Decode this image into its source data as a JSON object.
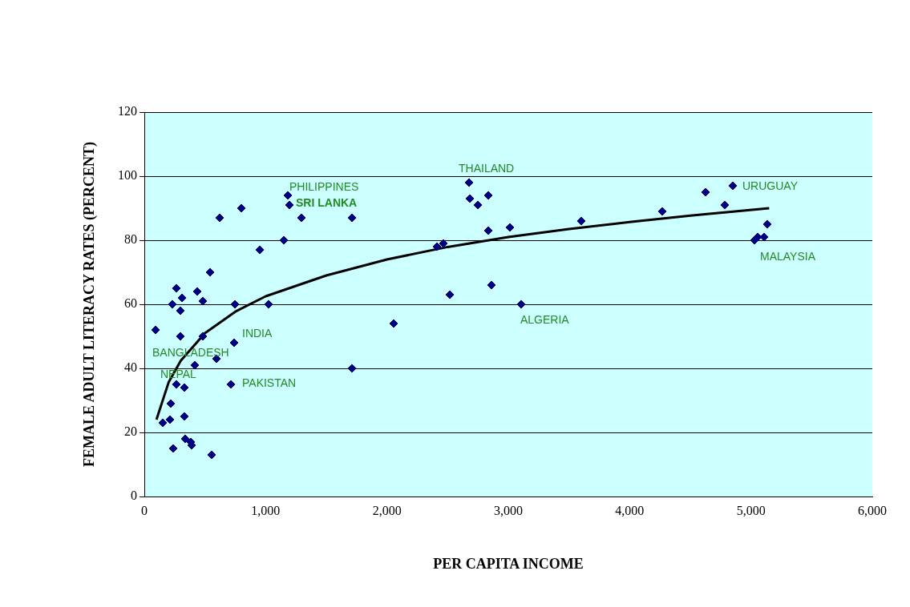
{
  "chart_data": {
    "type": "scatter",
    "xlabel": "PER CAPITA INCOME",
    "ylabel": "FEMALE ADULT LITERACY RATES (PERCENT)",
    "xlim": [
      0,
      6000
    ],
    "xticks": [
      {
        "value": 0,
        "label": "0"
      },
      {
        "value": 1000,
        "label": "1,000"
      },
      {
        "value": 2000,
        "label": "2,000"
      },
      {
        "value": 3000,
        "label": "3,000"
      },
      {
        "value": 4000,
        "label": "4,000"
      },
      {
        "value": 5000,
        "label": "5,000"
      },
      {
        "value": 6000,
        "label": "6,000"
      }
    ],
    "ylim": [
      0,
      120
    ],
    "yticks": [
      0,
      20,
      40,
      60,
      80,
      100,
      120
    ],
    "grid": "y",
    "legend": false,
    "series": [
      {
        "type": "scatter",
        "color": "#000080",
        "marker": "diamond",
        "x": [
          93,
          152,
          211,
          218,
          238,
          231,
          264,
          311,
          297,
          297,
          264,
          330,
          330,
          337,
          383,
          390,
          555,
          416,
          436,
          482,
          482,
          542,
          595,
          714,
          740,
          747,
          1024,
          621,
          800,
          952,
          1150,
          1183,
          1196,
          1295,
          1712,
          1712,
          2055,
          2412,
          2465,
          2518,
          2676,
          2683,
          2749,
          2835,
          2835,
          2861,
          3013,
          3106,
          3601,
          4269,
          4626,
          4784,
          4850,
          5029,
          5055,
          5108,
          5134
        ],
        "values": [
          52,
          23,
          24,
          29,
          15,
          60,
          65,
          62,
          58,
          50,
          35,
          34,
          25,
          18,
          17,
          16,
          13,
          41,
          64,
          61,
          50,
          70,
          43,
          35,
          48,
          60,
          60,
          87,
          90,
          77,
          80,
          94,
          91,
          87,
          87,
          40,
          54,
          78,
          79,
          63,
          98,
          93,
          91,
          94,
          83,
          66,
          84,
          60,
          86,
          89,
          95,
          91,
          97,
          80,
          81,
          81,
          85
        ]
      },
      {
        "type": "line",
        "color": "#000000",
        "marker": "none",
        "x": [
          100,
          200,
          300,
          500,
          750,
          1000,
          1500,
          2000,
          2500,
          3000,
          3500,
          4000,
          4500,
          5150
        ],
        "values": [
          24,
          35.6,
          42.4,
          51,
          57.7,
          62.5,
          69,
          74,
          77.9,
          81,
          83.5,
          85.7,
          87.7,
          90
        ]
      }
    ],
    "annotations": [
      "PHILIPPINES",
      "SRI LANKA",
      "THAILAND",
      "URUGUAY",
      "MALAYSIA",
      "ALGERIA",
      "INDIA",
      "BANGLADESH",
      "NEPAL",
      "PAKISTAN"
    ]
  }
}
